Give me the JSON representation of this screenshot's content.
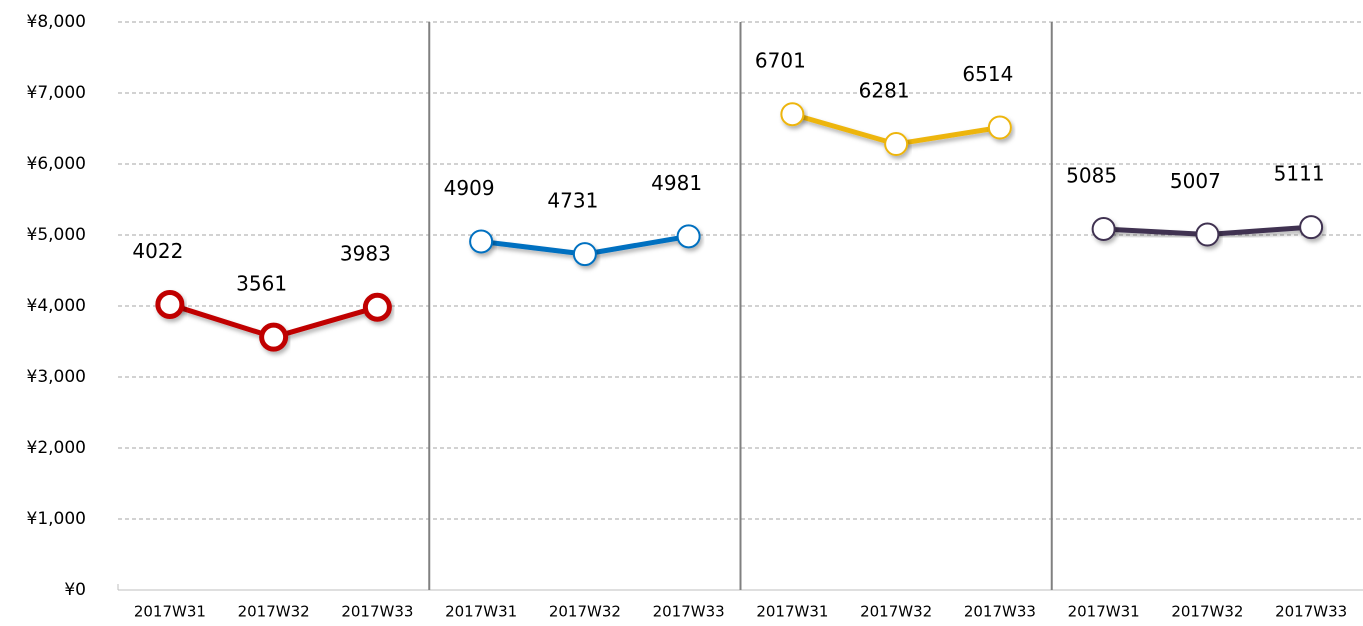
{
  "chart_data": {
    "type": "line",
    "categories": [
      "2017W31",
      "2017W32",
      "2017W33",
      "2017W31",
      "2017W32",
      "2017W33",
      "2017W31",
      "2017W32",
      "2017W33",
      "2017W31",
      "2017W32",
      "2017W33"
    ],
    "series": [
      {
        "color": "#c00000",
        "values": [
          4022,
          3561,
          3983,
          null,
          null,
          null,
          null,
          null,
          null,
          null,
          null,
          null
        ]
      },
      {
        "color": "#0070c0",
        "values": [
          null,
          null,
          null,
          4909,
          4731,
          4981,
          null,
          null,
          null,
          null,
          null,
          null
        ]
      },
      {
        "color": "#edb511",
        "values": [
          null,
          null,
          null,
          null,
          null,
          null,
          6701,
          6281,
          6514,
          null,
          null,
          null
        ]
      },
      {
        "color": "#3f3151",
        "values": [
          null,
          null,
          null,
          null,
          null,
          null,
          null,
          null,
          null,
          5085,
          5007,
          5111
        ]
      }
    ],
    "ylim": [
      0,
      8000
    ],
    "yticks": [
      {
        "value": 0,
        "label": "¥0"
      },
      {
        "value": 1000,
        "label": "¥1,000"
      },
      {
        "value": 2000,
        "label": "¥2,000"
      },
      {
        "value": 3000,
        "label": "¥3,000"
      },
      {
        "value": 4000,
        "label": "¥4,000"
      },
      {
        "value": 5000,
        "label": "¥5,000"
      },
      {
        "value": 6000,
        "label": "¥6,000"
      },
      {
        "value": 7000,
        "label": "¥7,000"
      },
      {
        "value": 8000,
        "label": "¥8,000"
      }
    ],
    "grid": true
  }
}
